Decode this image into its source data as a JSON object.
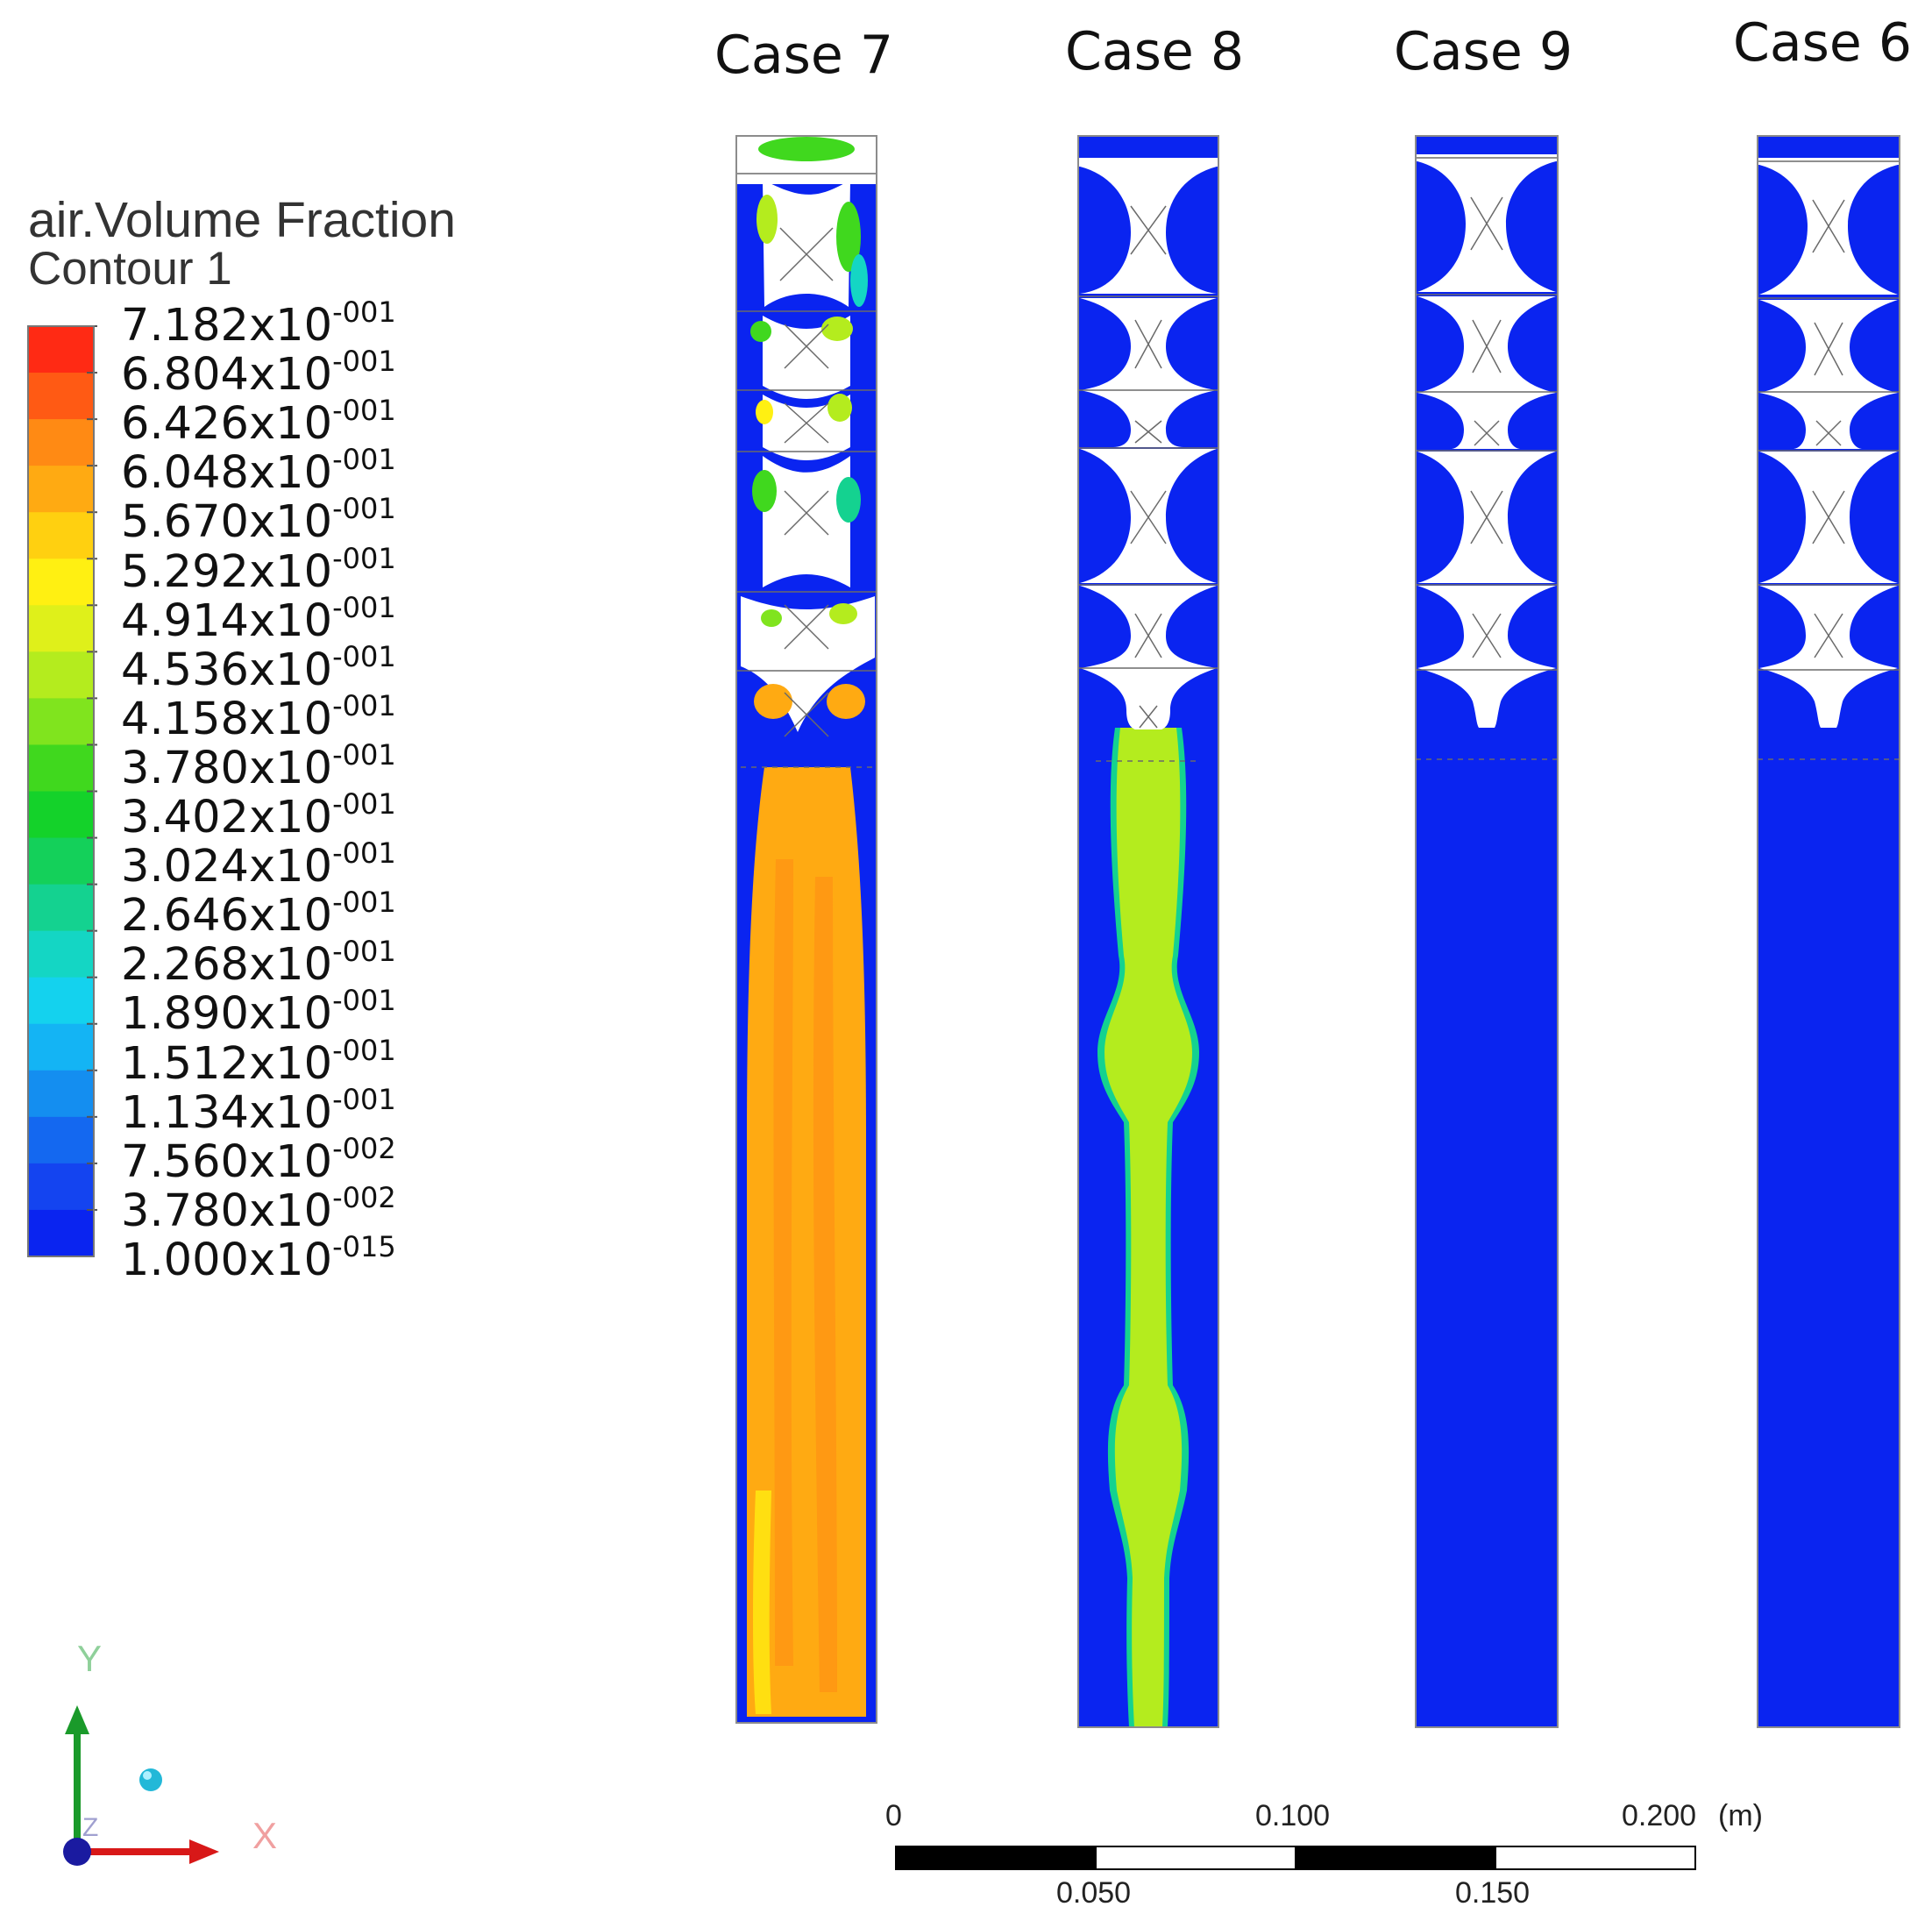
{
  "legend": {
    "title": "air.Volume Fraction",
    "subtitle": "Contour 1",
    "levels": [
      {
        "mantissa": "7.182x10",
        "exp": "-001",
        "color": "#ff2a14"
      },
      {
        "mantissa": "6.804x10",
        "exp": "-001",
        "color": "#ff5a14"
      },
      {
        "mantissa": "6.426x10",
        "exp": "-001",
        "color": "#ff8a14"
      },
      {
        "mantissa": "6.048x10",
        "exp": "-001",
        "color": "#ffaa12"
      },
      {
        "mantissa": "5.670x10",
        "exp": "-001",
        "color": "#ffd010"
      },
      {
        "mantissa": "5.292x10",
        "exp": "-001",
        "color": "#fff012"
      },
      {
        "mantissa": "4.914x10",
        "exp": "-001",
        "color": "#dff01a"
      },
      {
        "mantissa": "4.536x10",
        "exp": "-001",
        "color": "#b4ec1e"
      },
      {
        "mantissa": "4.158x10",
        "exp": "-001",
        "color": "#80e41e"
      },
      {
        "mantissa": "3.780x10",
        "exp": "-001",
        "color": "#40d81e"
      },
      {
        "mantissa": "3.402x10",
        "exp": "-001",
        "color": "#14d22a"
      },
      {
        "mantissa": "3.024x10",
        "exp": "-001",
        "color": "#14d05a"
      },
      {
        "mantissa": "2.646x10",
        "exp": "-001",
        "color": "#14d290"
      },
      {
        "mantissa": "2.268x10",
        "exp": "-001",
        "color": "#14d6c4"
      },
      {
        "mantissa": "1.890x10",
        "exp": "-001",
        "color": "#14d2ee"
      },
      {
        "mantissa": "1.512x10",
        "exp": "-001",
        "color": "#14b4f4"
      },
      {
        "mantissa": "1.134x10",
        "exp": "-001",
        "color": "#148ef0"
      },
      {
        "mantissa": "7.560x10",
        "exp": "-002",
        "color": "#1468f0"
      },
      {
        "mantissa": "3.780x10",
        "exp": "-002",
        "color": "#1444f0"
      },
      {
        "mantissa": "1.000x10",
        "exp": "-015",
        "color": "#0a24f0"
      }
    ]
  },
  "cases": [
    {
      "label": "Case 7",
      "core_color": "#ffaa12"
    },
    {
      "label": "Case 8",
      "core_color": "#b4ec1e"
    },
    {
      "label": "Case 9",
      "core_color": null
    },
    {
      "label": "Case 6",
      "core_color": null
    }
  ],
  "colors": {
    "liquid": "#0a24f0",
    "air_region": "#ffffff",
    "outline": "#8c8c8c"
  },
  "scale_bar": {
    "top_labels": [
      "0",
      "0.100",
      "0.200"
    ],
    "bottom_labels": [
      "0.050",
      "0.150"
    ],
    "unit": "(m)"
  },
  "axes": {
    "y": "Y",
    "x": "X",
    "z": "Z"
  }
}
